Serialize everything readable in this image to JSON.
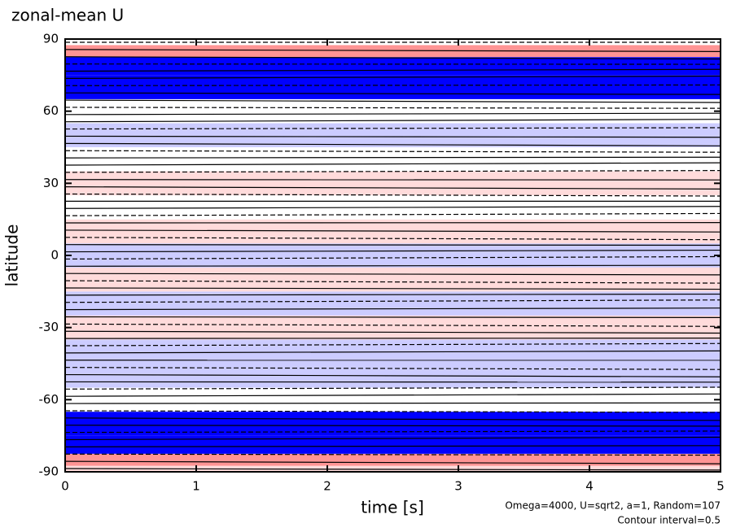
{
  "chart_data": {
    "type": "contour",
    "title": "zonal-mean U",
    "x_label": "time [s]",
    "y_label": "latitude",
    "annotations": [
      "Omega=4000, U=sqrt2, a=1, Random=107",
      "Contour interval=0.5"
    ],
    "y": [
      -90,
      -85,
      -80,
      -70,
      -60,
      -50,
      -40,
      -30,
      -20,
      -10,
      0,
      10,
      20,
      30,
      40,
      50,
      60,
      70,
      80,
      85,
      90
    ],
    "values": [
      0.5,
      1.5,
      -2.5,
      -2.5,
      0,
      -0.5,
      -0.5,
      0.5,
      -0.5,
      0.5,
      -0.5,
      0.5,
      0,
      0.5,
      0,
      -0.5,
      0,
      -2.5,
      -2.5,
      1.5,
      0
    ],
    "xlim": [
      0,
      5
    ],
    "xticks": [
      0,
      1,
      2,
      3,
      4,
      5
    ],
    "ylim": [
      -90,
      90
    ],
    "yticks": [
      -90,
      -60,
      -30,
      0,
      30,
      60,
      90
    ],
    "negative_color": "#0000ff",
    "positive_color": "#ff0000"
  }
}
